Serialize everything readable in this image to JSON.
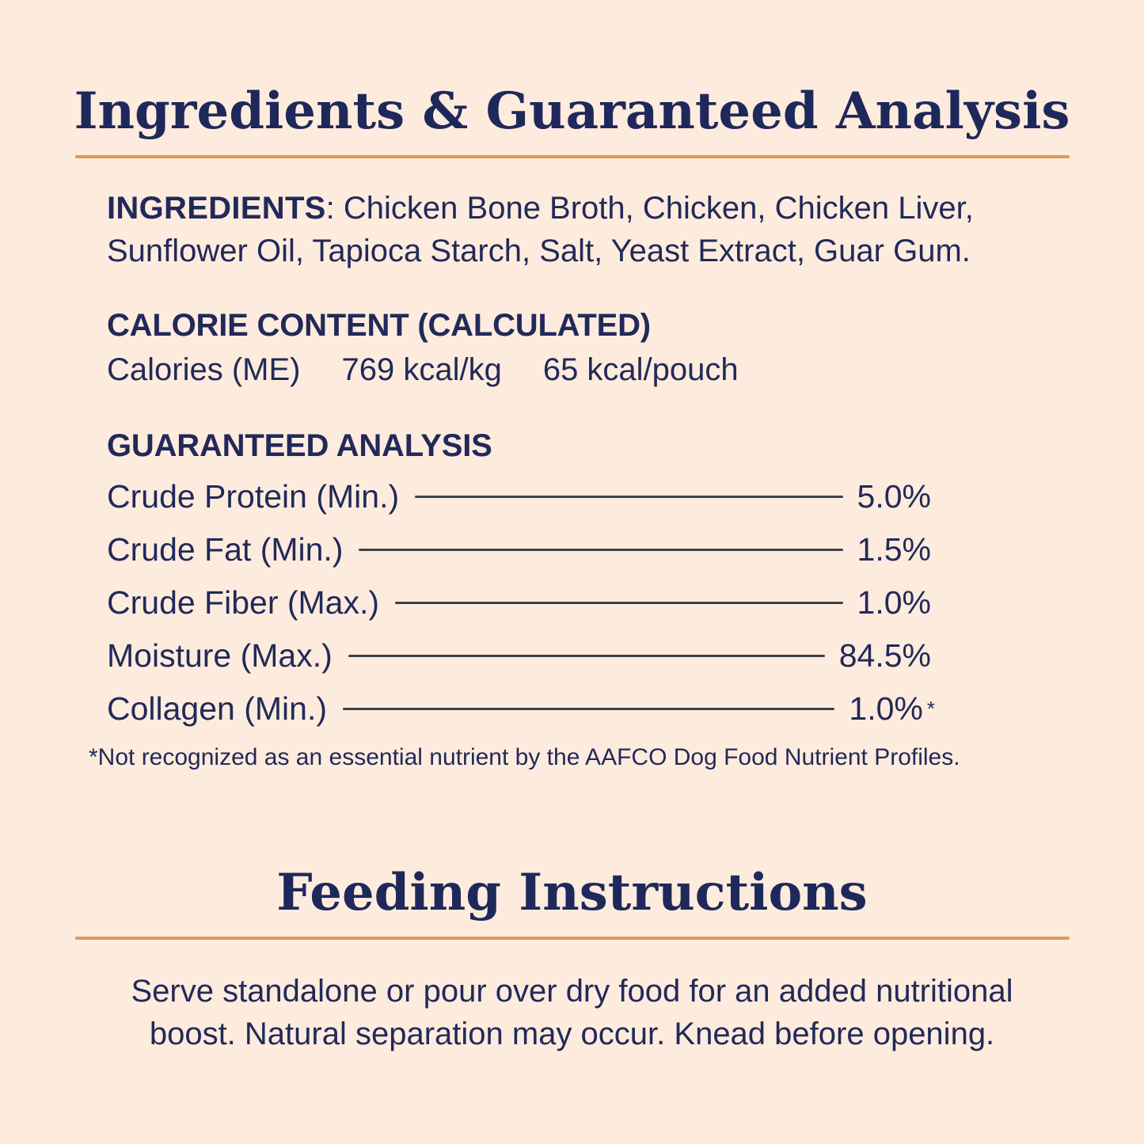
{
  "colors": {
    "background": "#fdecdd",
    "text_navy": "#22295a",
    "accent_rule_orange": "#dc9b52",
    "leader_line": "#3c404c"
  },
  "ingredients_section": {
    "title": "Ingredients & Guaranteed Analysis",
    "ingredients_label": "INGREDIENTS",
    "ingredients_line1_rest": ": Chicken Bone Broth, Chicken, Chicken Liver,",
    "ingredients_line2": "Sunflower Oil, Tapioca Starch, Salt, Yeast Extract, Guar Gum.",
    "calorie_heading": "CALORIE CONTENT (CALCULATED)",
    "calorie_label": "Calories (ME)",
    "calorie_per_kg": "769 kcal/kg",
    "calorie_per_pouch": "65 kcal/pouch",
    "analysis_heading": "GUARANTEED ANALYSIS",
    "analysis_rows": [
      {
        "label": "Crude Protein (Min.)",
        "value": "5.0%"
      },
      {
        "label": "Crude Fat (Min.)",
        "value": "1.5%"
      },
      {
        "label": "Crude Fiber (Max.)",
        "value": "1.0%"
      },
      {
        "label": "Moisture (Max.)",
        "value": "84.5%"
      },
      {
        "label": "Collagen (Min.)",
        "value": "1.0%",
        "mark": "*"
      }
    ],
    "footnote": "*Not recognized as an essential nutrient by the AAFCO Dog Food Nutrient Profiles."
  },
  "feeding_section": {
    "title": "Feeding Instructions",
    "line1": "Serve standalone or pour over dry food for an added nutritional",
    "line2": "boost. Natural separation may occur. Knead before opening."
  }
}
